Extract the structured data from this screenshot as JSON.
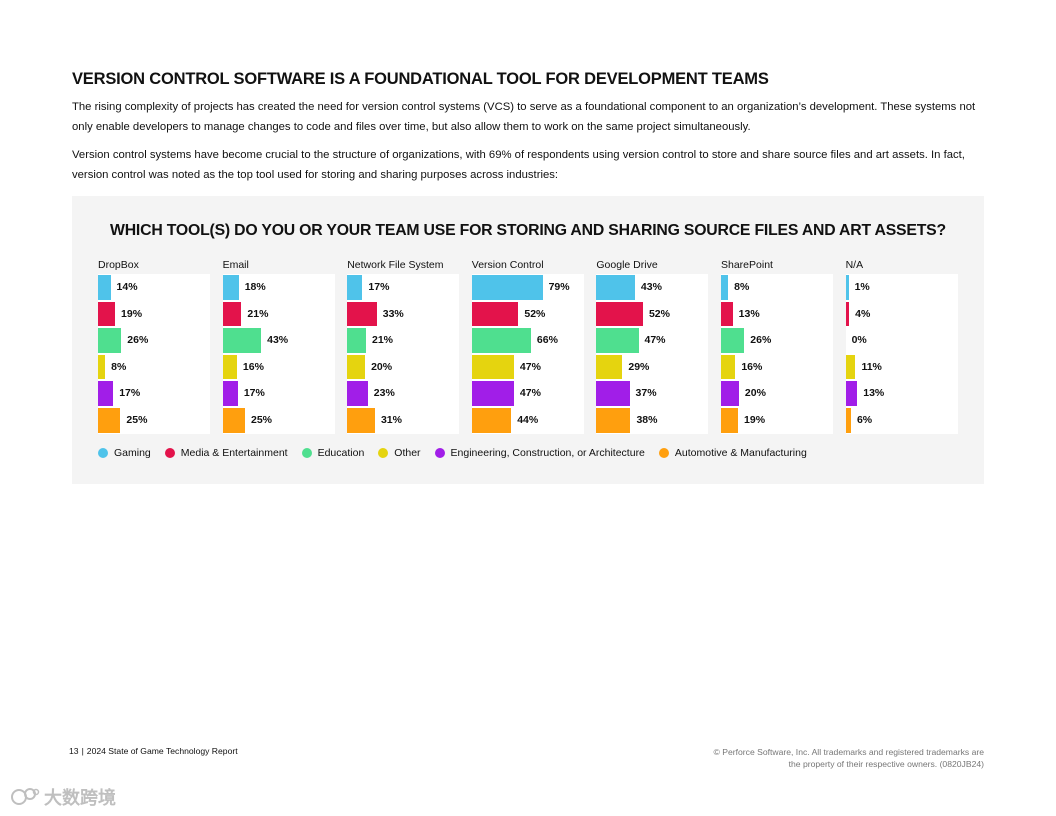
{
  "page": {
    "title": "VERSION CONTROL SOFTWARE IS A FOUNDATIONAL TOOL FOR DEVELOPMENT TEAMS",
    "paragraph1": "The rising complexity of projects has created the need for version control systems (VCS) to serve as a foundational component to an organization’s development. These systems not only enable developers to manage changes to code and files over time, but also allow them to work on the same project simultaneously.",
    "paragraph2": "Version control systems have become crucial to the structure of organizations, with 69% of respondents using version control to store and share source files and art assets. In fact, version control was noted as the top tool used for storing and sharing purposes across industries:"
  },
  "chart_data": {
    "type": "bar",
    "orientation": "horizontal",
    "layout": "small-multiples",
    "title": "WHICH TOOL(S) DO YOU OR YOUR TEAM USE FOR STORING AND SHARING SOURCE FILES AND ART ASSETS?",
    "unit": "%",
    "xlim": [
      0,
      100
    ],
    "legend_position": "bottom",
    "tools": [
      "DropBox",
      "Email",
      "Network File System",
      "Version Control",
      "Google Drive",
      "SharePoint",
      "N/A"
    ],
    "series": [
      {
        "name": "Gaming",
        "color": "#4fc3ea",
        "values": [
          14,
          18,
          17,
          79,
          43,
          8,
          1
        ]
      },
      {
        "name": "Media & Entertainment",
        "color": "#e3134b",
        "values": [
          19,
          21,
          33,
          52,
          52,
          13,
          4
        ]
      },
      {
        "name": "Education",
        "color": "#4fdf8f",
        "values": [
          26,
          43,
          21,
          66,
          47,
          26,
          0
        ]
      },
      {
        "name": "Other",
        "color": "#e5d40f",
        "values": [
          8,
          16,
          20,
          47,
          29,
          16,
          11
        ]
      },
      {
        "name": "Engineering, Construction, or Architecture",
        "color": "#a11ee8",
        "values": [
          17,
          17,
          23,
          47,
          37,
          20,
          13
        ]
      },
      {
        "name": "Automotive & Manufacturing",
        "color": "#ff9f0e",
        "values": [
          25,
          25,
          31,
          44,
          38,
          19,
          6
        ]
      }
    ]
  },
  "footer": {
    "page_number": "13",
    "report_name": "2024 State of Game Technology Report",
    "copyright": "© Perforce Software, Inc. All trademarks and registered trademarks are the property of their respective owners. (0820JB24)"
  },
  "watermark": {
    "text": "大数跨境",
    "color": "#b5b5b5"
  }
}
